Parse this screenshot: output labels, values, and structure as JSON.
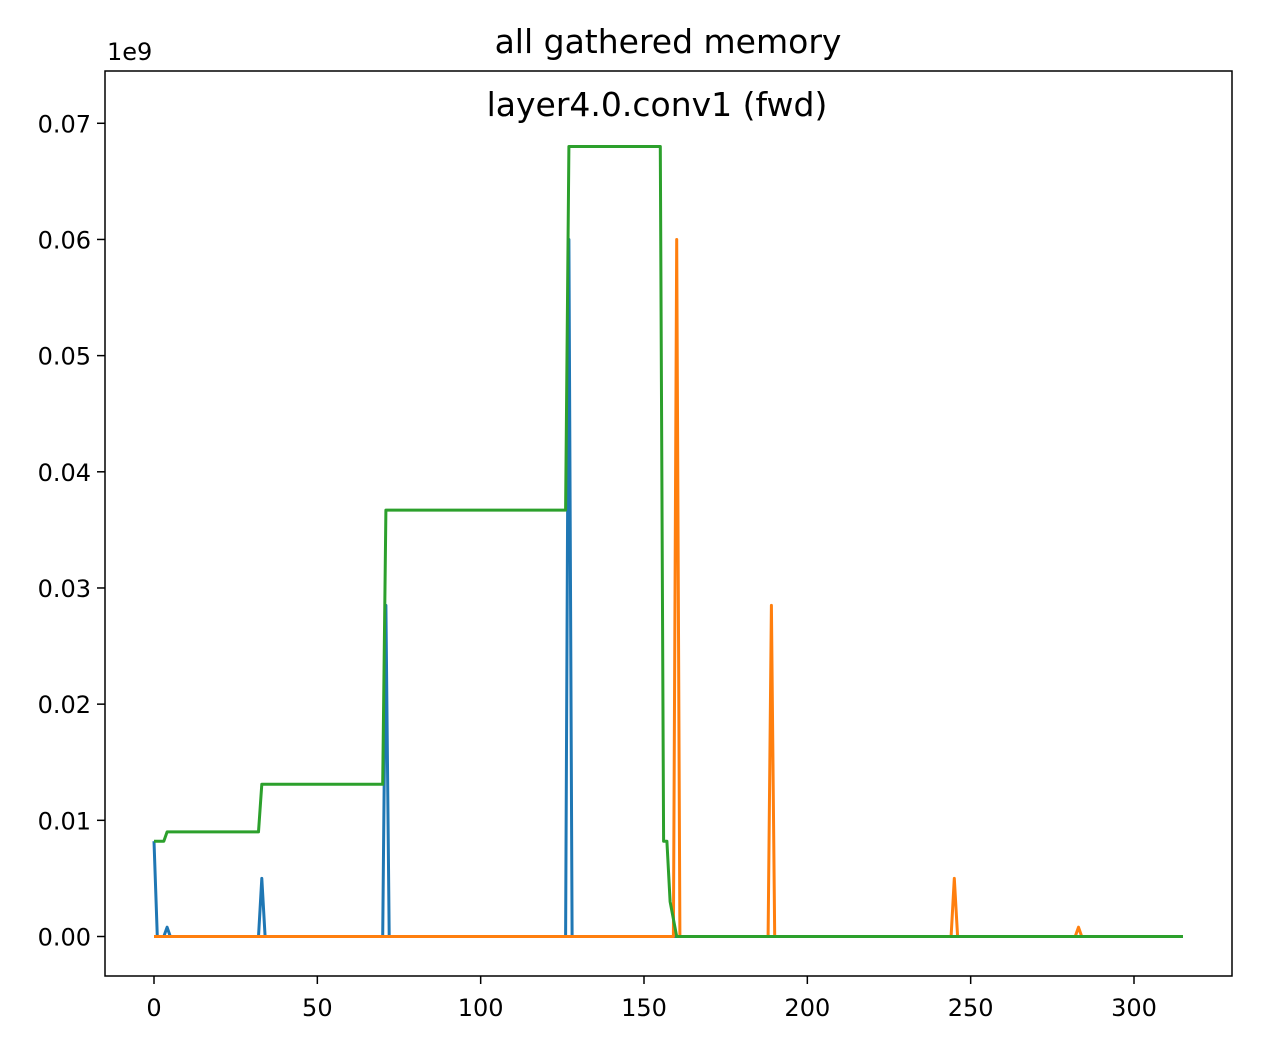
{
  "chart_data": {
    "type": "line",
    "title": "all gathered memory",
    "subtitle": "layer4.0.conv1 (fwd)",
    "xlabel": "",
    "ylabel": "",
    "y_offset_label": "1e9",
    "xlim": [
      -15,
      330
    ],
    "ylim": [
      -0.0034,
      0.0745
    ],
    "x_ticks": [
      0,
      50,
      100,
      150,
      200,
      250,
      300
    ],
    "x_tick_labels": [
      "0",
      "50",
      "100",
      "150",
      "200",
      "250",
      "300"
    ],
    "y_ticks": [
      0.0,
      0.01,
      0.02,
      0.03,
      0.04,
      0.05,
      0.06,
      0.07
    ],
    "y_tick_labels": [
      "0.00",
      "0.01",
      "0.02",
      "0.03",
      "0.04",
      "0.05",
      "0.06",
      "0.07"
    ],
    "grid": false,
    "legend": "none",
    "series": [
      {
        "color": "#1f77b4",
        "x": [
          0,
          1,
          2,
          3,
          4,
          5,
          31,
          32,
          33,
          34,
          70,
          71,
          72,
          126,
          127,
          128,
          315
        ],
        "y": [
          0.0082,
          0.0,
          0.0,
          0.0,
          0.0008,
          0.0,
          0.0,
          0.0,
          0.005,
          0.0,
          0.0,
          0.0285,
          0.0,
          0.0,
          0.06,
          0.0,
          0.0
        ]
      },
      {
        "color": "#ff7f0e",
        "x": [
          0,
          158,
          159,
          160,
          161,
          187,
          188,
          189,
          190,
          244,
          245,
          246,
          281,
          282,
          283,
          284,
          315
        ],
        "y": [
          0.0,
          0.0,
          0.0,
          0.06,
          0.0,
          0.0,
          0.0,
          0.0285,
          0.0,
          0.0,
          0.005,
          0.0,
          0.0,
          0.0,
          0.0008,
          0.0,
          0.0
        ]
      },
      {
        "color": "#2ca02c",
        "x": [
          0,
          3,
          4,
          32,
          33,
          70,
          71,
          126,
          127,
          155,
          156,
          157,
          158,
          160,
          315
        ],
        "y": [
          0.0082,
          0.0082,
          0.009,
          0.009,
          0.0131,
          0.0131,
          0.0367,
          0.0367,
          0.068,
          0.068,
          0.0082,
          0.0082,
          0.003,
          0.0,
          0.0
        ]
      }
    ]
  }
}
